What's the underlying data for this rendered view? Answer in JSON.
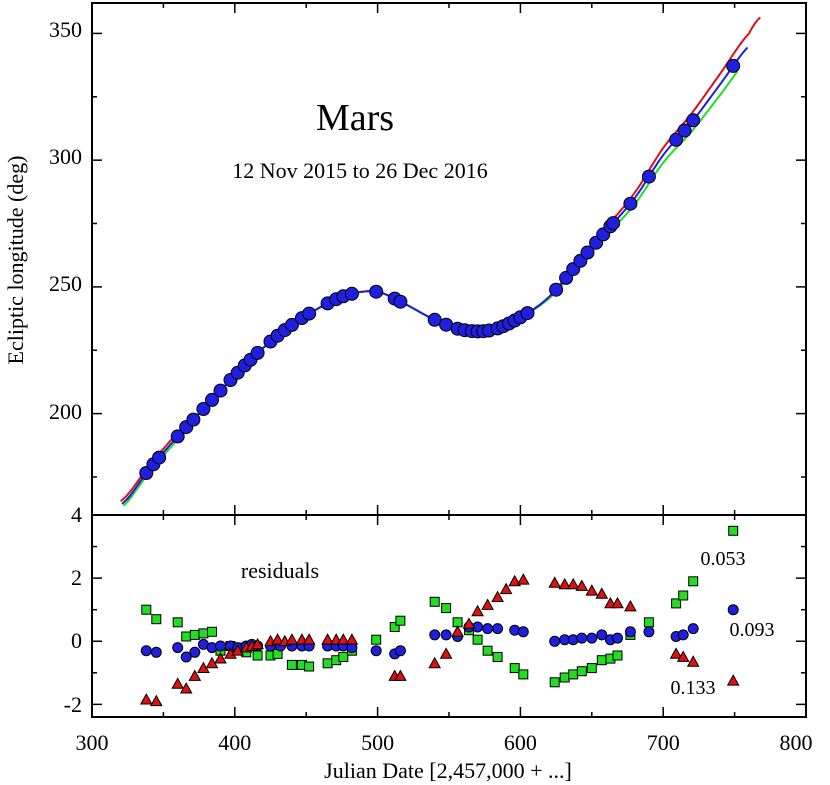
{
  "chart_data": {
    "type": "scatter",
    "title": "Mars",
    "subtitle": "12 Nov 2015 to 26 Dec 2016",
    "xlabel": "Julian Date [2,457,000 + ...]",
    "xlim": [
      300,
      800
    ],
    "xticks": [
      "300",
      "400",
      "500",
      "600",
      "700",
      "800"
    ],
    "colors": {
      "blue": "#1f1fe0",
      "green": "#22dd22",
      "red": "#dd1111",
      "outline": "#000000"
    },
    "top_panel": {
      "ylabel": "Ecliptic longitude (deg)",
      "ylim": [
        160,
        362
      ],
      "yticks": [
        "200",
        "250",
        "300",
        "350"
      ],
      "observations_x": [
        338,
        343,
        347,
        360,
        366,
        371,
        378,
        384,
        390,
        397,
        402,
        407,
        411,
        416,
        425,
        430,
        435,
        440,
        447,
        452,
        465,
        471,
        476,
        482,
        499,
        512,
        516,
        540,
        548,
        556,
        561,
        566,
        570,
        574,
        578,
        584,
        588,
        592,
        596,
        600,
        605,
        625,
        632,
        637,
        642,
        647,
        653,
        658,
        663,
        665,
        677,
        690,
        709,
        715,
        721,
        749
      ]
    },
    "bottom_panel": {
      "label": "residuals",
      "ylim": [
        -2.4,
        4
      ],
      "yticks": [
        "-2",
        "0",
        "2",
        "4"
      ],
      "series": [
        {
          "name": "0.053",
          "marker": "square",
          "color": "green",
          "x": [
            338,
            345,
            360,
            366,
            372,
            378,
            384,
            390,
            397,
            402,
            408,
            416,
            425,
            430,
            440,
            447,
            452,
            465,
            471,
            476,
            482,
            499,
            512,
            516,
            540,
            548,
            556,
            564,
            570,
            577,
            584,
            596,
            602,
            624,
            631,
            637,
            643,
            650,
            657,
            663,
            668,
            677,
            690,
            709,
            714,
            721,
            749
          ],
          "y": [
            1.0,
            0.7,
            0.6,
            0.15,
            0.2,
            0.25,
            0.3,
            -0.3,
            -0.15,
            -0.2,
            -0.35,
            -0.45,
            -0.45,
            -0.4,
            -0.75,
            -0.75,
            -0.8,
            -0.7,
            -0.6,
            -0.5,
            -0.3,
            0.05,
            0.45,
            0.65,
            1.25,
            1.05,
            0.6,
            0.35,
            0.05,
            -0.3,
            -0.5,
            -0.85,
            -1.05,
            -1.3,
            -1.15,
            -1.05,
            -0.95,
            -0.85,
            -0.6,
            -0.55,
            -0.45,
            0.2,
            0.6,
            1.2,
            1.45,
            1.9,
            3.5
          ]
        },
        {
          "name": "0.093",
          "marker": "circle",
          "color": "blue",
          "x": [
            338,
            345,
            360,
            366,
            372,
            378,
            384,
            390,
            397,
            402,
            408,
            412,
            416,
            425,
            432,
            440,
            447,
            452,
            465,
            471,
            476,
            482,
            499,
            512,
            516,
            540,
            548,
            556,
            564,
            570,
            577,
            584,
            596,
            602,
            624,
            631,
            637,
            643,
            650,
            657,
            663,
            668,
            677,
            690,
            709,
            714,
            721,
            749
          ],
          "y": [
            -0.3,
            -0.35,
            -0.2,
            -0.5,
            -0.35,
            -0.1,
            -0.2,
            -0.15,
            -0.15,
            -0.2,
            -0.15,
            -0.1,
            -0.15,
            -0.15,
            -0.15,
            -0.15,
            -0.15,
            -0.15,
            -0.15,
            -0.15,
            -0.15,
            -0.2,
            -0.3,
            -0.4,
            -0.3,
            0.2,
            0.2,
            0.15,
            0.45,
            0.45,
            0.4,
            0.4,
            0.35,
            0.3,
            0.0,
            0.05,
            0.05,
            0.1,
            0.1,
            0.2,
            0.05,
            0.1,
            0.3,
            0.3,
            0.15,
            0.2,
            0.4,
            1.0
          ]
        },
        {
          "name": "0.133",
          "marker": "triangle",
          "color": "red",
          "x": [
            338,
            345,
            360,
            366,
            372,
            378,
            384,
            390,
            397,
            402,
            408,
            412,
            416,
            425,
            430,
            435,
            440,
            447,
            452,
            465,
            471,
            476,
            482,
            512,
            516,
            540,
            548,
            556,
            564,
            570,
            577,
            584,
            590,
            596,
            602,
            624,
            631,
            637,
            643,
            650,
            657,
            663,
            668,
            677,
            709,
            714,
            721,
            749
          ],
          "y": [
            -1.85,
            -1.9,
            -1.35,
            -1.5,
            -1.1,
            -0.85,
            -0.7,
            -0.55,
            -0.4,
            -0.3,
            -0.2,
            -0.15,
            -0.1,
            0.0,
            0.05,
            0.0,
            0.05,
            0.05,
            0.05,
            0.05,
            0.05,
            0.05,
            0.05,
            -1.1,
            -1.1,
            -0.7,
            -0.4,
            0.3,
            0.55,
            0.95,
            1.15,
            1.4,
            1.65,
            1.9,
            1.95,
            1.85,
            1.8,
            1.8,
            1.75,
            1.6,
            1.5,
            1.2,
            1.2,
            1.1,
            -0.4,
            -0.5,
            -0.65,
            -1.25
          ]
        }
      ],
      "annotations": [
        "0.053",
        "0.093",
        "0.133"
      ]
    }
  }
}
